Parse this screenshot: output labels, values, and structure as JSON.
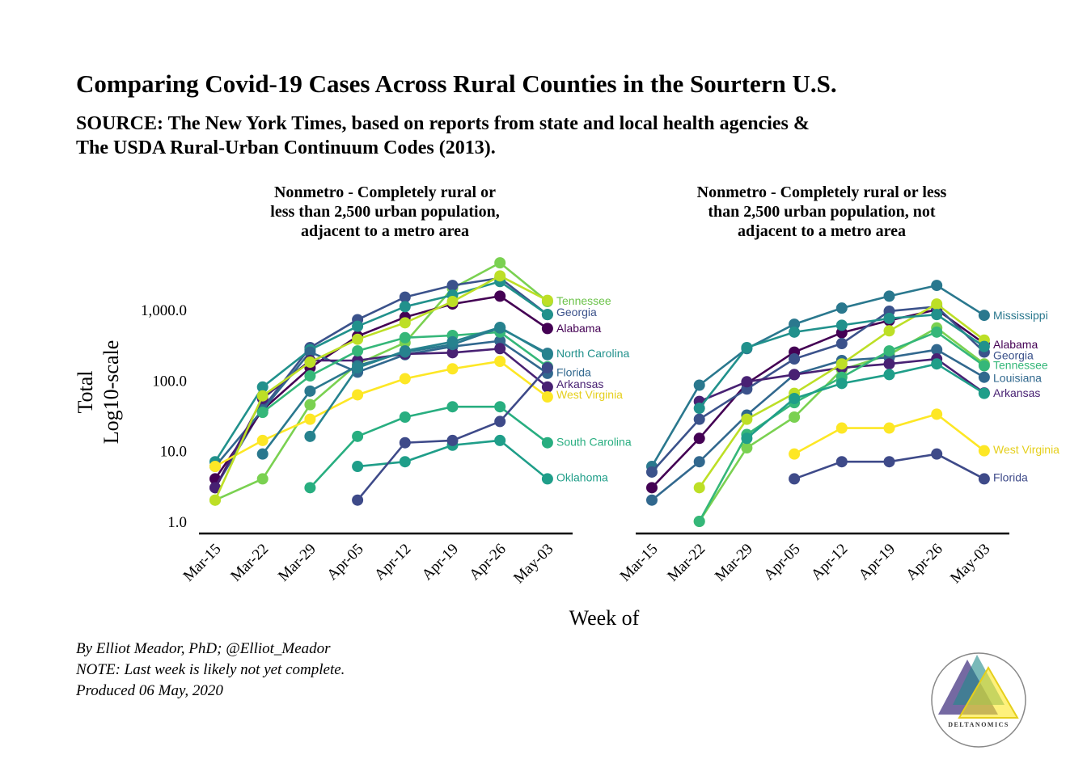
{
  "header": {
    "title": "Comparing Covid-19 Cases Across Rural Counties in the Sourtern U.S.",
    "subtitle_line1": "SOURCE: The New York Times, based on reports from state and local health agencies &",
    "subtitle_line2": "The USDA Rural-Urban Continuum Codes (2013)."
  },
  "captions": {
    "byline": "By Elliot Meador, PhD; @Elliot_Meador",
    "note": "NOTE: Last week is likely not yet complete.",
    "produced": "Produced 06 May, 2020"
  },
  "logo": {
    "text": "DELTANOMICS"
  },
  "chart_data": {
    "type": "line",
    "xlabel": "Week of",
    "ylabel": "Total",
    "ylabel2": "Log10-scale",
    "scale": "log10",
    "ylim": [
      0.7,
      6000
    ],
    "yticks": [
      "1,000.0",
      "100.0",
      "10.0",
      "1.0"
    ],
    "ytick_values": [
      1000,
      100,
      10,
      1
    ],
    "categories": [
      "Mar-15",
      "Mar-22",
      "Mar-29",
      "Apr-05",
      "Apr-12",
      "Apr-19",
      "Apr-26",
      "May-03"
    ],
    "panels": [
      {
        "title_lines": [
          "Nonmetro - Completely rural or",
          "less than 2,500 urban population,",
          "adjacent to a metro area"
        ],
        "series": [
          {
            "name": "Tennessee",
            "color": "#7ad151",
            "values": [
              2,
              4,
              45,
              170,
              340,
              2000,
              4600,
              1300
            ]
          },
          {
            "name": "Georgia",
            "color": "#3b528b",
            "values": [
              3,
              40,
              290,
              720,
              1500,
              2200,
              2800,
              850
            ]
          },
          {
            "name": "Alabama",
            "color": "#440154",
            "values": [
              4,
              38,
              150,
              420,
              780,
              1200,
              1550,
              540
            ]
          },
          {
            "name": "North Carolina",
            "color": "#21918c",
            "values": [
              7,
              80,
              270,
              580,
              1100,
              1600,
              2500,
              850
            ]
          },
          {
            "name": "Florida",
            "color": "#31688e",
            "values": [
              6,
              38,
              250,
              130,
              230,
              300,
              360,
              125
            ]
          },
          {
            "name": "Arkansas",
            "color": "#482173",
            "values": [
              3,
              55,
              190,
              190,
              235,
              245,
              280,
              80
            ]
          },
          {
            "name": "West Virginia",
            "color": "#fde725",
            "values": [
              6,
              14,
              28,
              62,
              105,
              145,
              185,
              58
            ]
          },
          {
            "name": "South Carolina",
            "color": "#28ae80",
            "values": [
              null,
              null,
              3,
              16,
              30,
              42,
              42,
              13
            ]
          },
          {
            "name": "Oklahoma",
            "color": "#1f9e89",
            "values": [
              null,
              null,
              null,
              6,
              7,
              12,
              14,
              4
            ]
          },
          {
            "name": "",
            "color": "#bddf26",
            "values": [
              2,
              60,
              180,
              380,
              650,
              1300,
              3000,
              1350
            ]
          },
          {
            "name": "",
            "color": "#35b779",
            "values": [
              null,
              35,
              115,
              260,
              400,
              430,
              480,
              155
            ]
          },
          {
            "name": "",
            "color": "#3e4a89",
            "values": [
              null,
              null,
              null,
              2,
              13,
              14,
              26,
              150
            ]
          },
          {
            "name": "",
            "color": "#2a788e",
            "values": [
              null,
              9,
              70,
              160,
              250,
              320,
              550,
              240
            ]
          },
          {
            "name": "",
            "color": "#26828e",
            "values": [
              null,
              null,
              16,
              150,
              260,
              350,
              560,
              230
            ]
          }
        ],
        "end_labels": [
          {
            "name": "Tennessee",
            "color": "#6cc34a",
            "value": 1330
          },
          {
            "name": "Georgia",
            "color": "#3b528b",
            "value": 930
          },
          {
            "name": "Alabama",
            "color": "#440154",
            "value": 545
          },
          {
            "name": "North Carolina",
            "color": "#21918c",
            "value": 240
          },
          {
            "name": "Florida",
            "color": "#31688e",
            "value": 130
          },
          {
            "name": "Arkansas",
            "color": "#482173",
            "value": 89
          },
          {
            "name": "West Virginia",
            "color": "#e5cf1c",
            "value": 63
          },
          {
            "name": "South Carolina",
            "color": "#28ae80",
            "value": 13.5
          },
          {
            "name": "Oklahoma",
            "color": "#1f9e89",
            "value": 4.2
          }
        ]
      },
      {
        "title_lines": [
          "Nonmetro - Completely rural or less",
          "than 2,500 urban population, not",
          "adjacent to a metro area"
        ],
        "series": [
          {
            "name": "Mississippi",
            "color": "#2a788e",
            "values": [
              6,
              85,
              280,
              620,
              1050,
              1550,
              2200,
              830
            ]
          },
          {
            "name": "Alabama",
            "color": "#440154",
            "values": [
              3,
              15,
              90,
              250,
              470,
              700,
              1000,
              330
            ]
          },
          {
            "name": "Georgia",
            "color": "#3b528b",
            "values": [
              5,
              28,
              75,
              200,
              330,
              950,
              1100,
              250
            ]
          },
          {
            "name": "Tennessee",
            "color": "#7ad151",
            "values": [
              null,
              1,
              11,
              30,
              140,
              230,
              550,
              170
            ]
          },
          {
            "name": "Louisiana",
            "color": "#31688e",
            "values": [
              2,
              7,
              32,
              120,
              190,
              210,
              270,
              110
            ]
          },
          {
            "name": "Arkansas",
            "color": "#482173",
            "values": [
              null,
              50,
              95,
              120,
              150,
              170,
              200,
              66
            ]
          },
          {
            "name": "West Virginia",
            "color": "#fde725",
            "values": [
              null,
              null,
              null,
              9,
              21,
              21,
              33,
              10
            ]
          },
          {
            "name": "Florida",
            "color": "#3e4a89",
            "values": [
              null,
              null,
              null,
              4,
              7,
              7,
              9,
              4
            ]
          },
          {
            "name": "",
            "color": "#bddf26",
            "values": [
              null,
              3,
              28,
              65,
              170,
              500,
              1200,
              370
            ]
          },
          {
            "name": "",
            "color": "#21918c",
            "values": [
              null,
              40,
              290,
              480,
              600,
              750,
              850,
              300
            ]
          },
          {
            "name": "",
            "color": "#35b779",
            "values": [
              null,
              1,
              17,
              48,
              110,
              260,
              480,
              160
            ]
          },
          {
            "name": "",
            "color": "#1f9e89",
            "values": [
              null,
              null,
              15,
              55,
              90,
              120,
              170,
              65
            ]
          }
        ],
        "end_labels": [
          {
            "name": "Mississippi",
            "color": "#2a788e",
            "value": 830
          },
          {
            "name": "Alabama",
            "color": "#440154",
            "value": 320
          },
          {
            "name": "Georgia",
            "color": "#3b528b",
            "value": 225
          },
          {
            "name": "Tennessee",
            "color": "#35b779",
            "value": 165
          },
          {
            "name": "Louisiana",
            "color": "#31688e",
            "value": 108
          },
          {
            "name": "Arkansas",
            "color": "#482173",
            "value": 66
          },
          {
            "name": "West Virginia",
            "color": "#e5cf1c",
            "value": 10.5
          },
          {
            "name": "Florida",
            "color": "#3e4a89",
            "value": 4.2
          }
        ]
      }
    ]
  }
}
